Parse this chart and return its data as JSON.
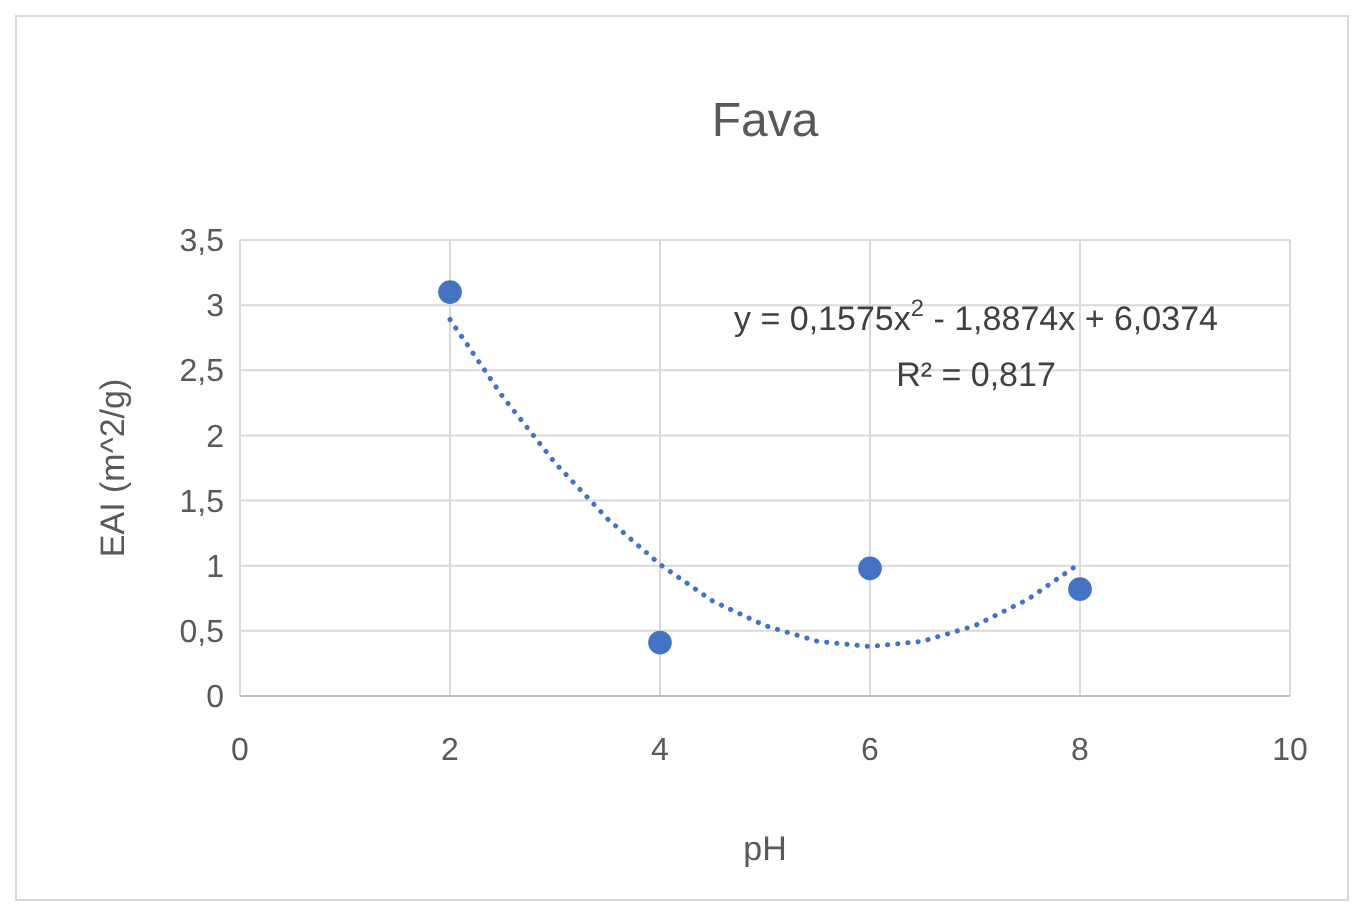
{
  "chart_data": {
    "type": "scatter",
    "title": "Fava",
    "xlabel": "pH",
    "ylabel": "EAI (m^2/g)",
    "xlim": [
      0,
      10
    ],
    "xticks": [
      0,
      2,
      4,
      6,
      8,
      10
    ],
    "ylim": [
      0,
      3.5
    ],
    "yticks": [
      0,
      {
        "value": 0.5,
        "label": "0,5"
      },
      1,
      {
        "value": 1.5,
        "label": "1,5"
      },
      2,
      {
        "value": 2.5,
        "label": "2,5"
      },
      3,
      {
        "value": 3.5,
        "label": "3,5"
      }
    ],
    "grid": true,
    "series": [
      {
        "color": "#4472c4",
        "marker": "circle",
        "x": [
          2,
          4,
          6,
          8
        ],
        "values": [
          3.1,
          0.41,
          0.98,
          0.82
        ]
      },
      {
        "type": "line",
        "color": "#4472c4",
        "marker": "none",
        "line_style": "dotted",
        "x": [
          2,
          2.5,
          3,
          3.5,
          4,
          4.5,
          5,
          5.5,
          6,
          6.5,
          7,
          7.5,
          8
        ],
        "values": [
          2.89,
          2.3,
          1.79,
          1.36,
          1.01,
          0.73,
          0.54,
          0.42,
          0.38,
          0.42,
          0.54,
          0.74,
          1.02
        ]
      }
    ],
    "annotations": [
      "y = 0,1575x$^{2}$ - 1,8874x + 6,0374",
      "R² = 0,817"
    ]
  }
}
